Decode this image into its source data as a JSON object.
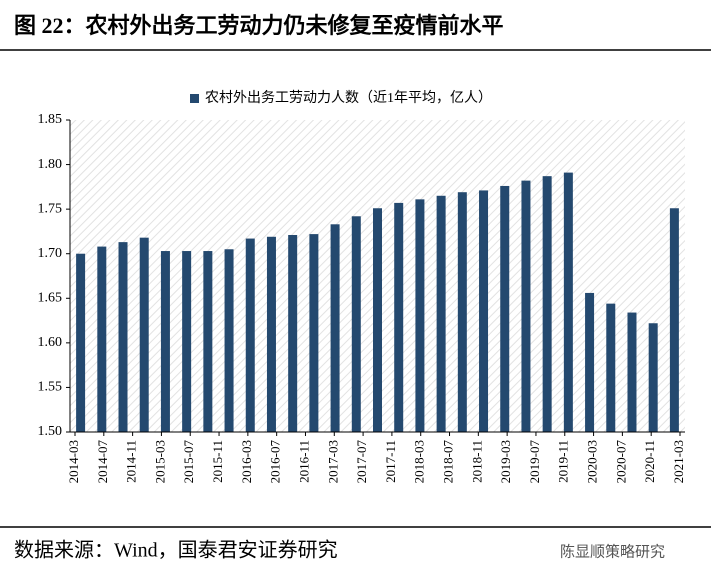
{
  "chart_data": {
    "type": "bar",
    "title": "图 22：农村外出务工劳动力仍未修复至疫情前水平",
    "series": [
      {
        "name": "农村外出务工劳动力人数（近1年平均，亿人）",
        "color": "#24496f",
        "values": [
          1.7,
          1.708,
          1.713,
          1.718,
          1.703,
          1.703,
          1.703,
          1.705,
          1.717,
          1.719,
          1.721,
          1.722,
          1.733,
          1.742,
          1.751,
          1.757,
          1.761,
          1.765,
          1.769,
          1.771,
          1.776,
          1.782,
          1.787,
          1.791,
          1.656,
          1.644,
          1.634,
          1.622,
          1.751
        ]
      }
    ],
    "xticks": [
      "2014-03",
      "2014-07",
      "2014-11",
      "2015-03",
      "2015-07",
      "2015-11",
      "2016-03",
      "2016-07",
      "2016-11",
      "2017-03",
      "2017-07",
      "2017-11",
      "2018-03",
      "2018-07",
      "2018-11",
      "2019-03",
      "2019-07",
      "2019-11",
      "2020-03",
      "2020-07",
      "2020-11",
      "2021-03"
    ],
    "ylim": [
      1.5,
      1.85
    ],
    "yticks": [
      {
        "value": 1.5,
        "label": "1.50"
      },
      {
        "value": 1.55,
        "label": "1.55"
      },
      {
        "value": 1.6,
        "label": "1.60"
      },
      {
        "value": 1.65,
        "label": "1.65"
      },
      {
        "value": 1.7,
        "label": "1.70"
      },
      {
        "value": 1.75,
        "label": "1.75"
      },
      {
        "value": 1.8,
        "label": "1.80"
      },
      {
        "value": 1.85,
        "label": "1.85"
      }
    ],
    "source": "数据来源：Wind，国泰君安证券研究",
    "watermark": "陈显顺策略研究"
  }
}
